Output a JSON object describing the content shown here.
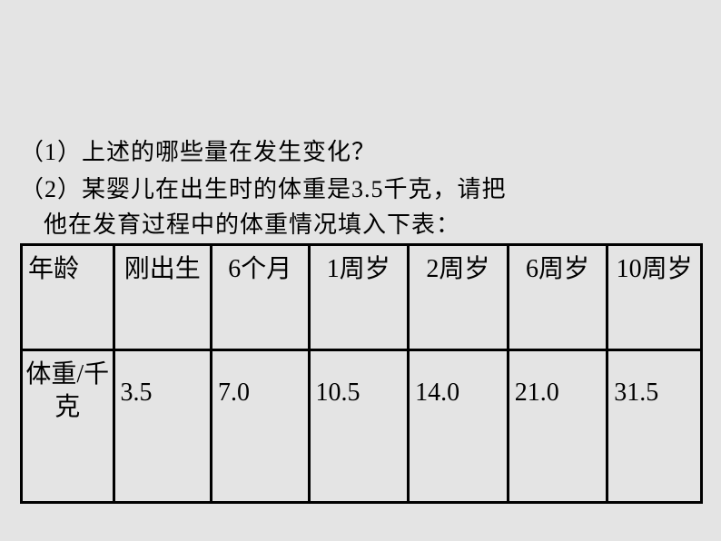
{
  "questions": {
    "q1": "（1）上述的哪些量在发生变化？",
    "q2_line1": "（2）某婴儿在出生时的体重是3.5千克，请把",
    "q2_line2": "他在发育过程中的体重情况填入下表："
  },
  "table": {
    "headers": {
      "col1": "年龄",
      "col2": "刚出生",
      "col3": "6个月",
      "col4": "1周岁",
      "col5": "2周岁",
      "col6": "6周岁",
      "col7": "10周岁"
    },
    "row_label": "体重/千克",
    "values": {
      "v1": "3.5",
      "v2": "7.0",
      "v3": "10.5",
      "v4": "14.0",
      "v5": "21.0",
      "v6": "31.5"
    }
  },
  "styling": {
    "background_color": "#e4e4e4",
    "text_color": "#000000",
    "border_color": "#000000",
    "border_width": 3,
    "question_fontsize": 26,
    "table_fontsize": 28,
    "font_family": "SimSun"
  }
}
